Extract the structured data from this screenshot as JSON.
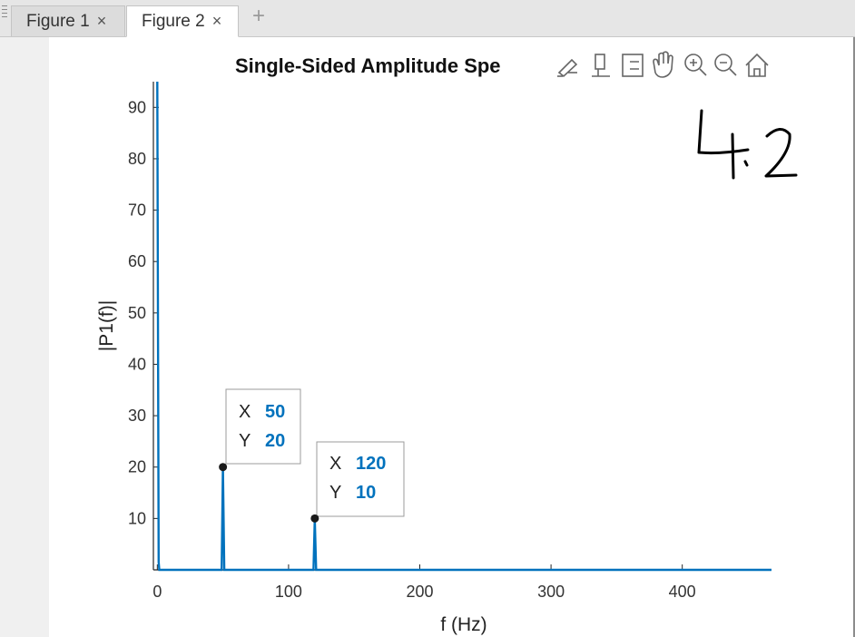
{
  "tabs": [
    {
      "label": "Figure 1",
      "close": "×"
    },
    {
      "label": "Figure 2",
      "close": "×"
    }
  ],
  "add_tab_label": "+",
  "toolbar_icons": [
    "brush-icon",
    "datatip-icon",
    "legend-icon",
    "pan-icon",
    "zoom-in-icon",
    "zoom-out-icon",
    "home-icon"
  ],
  "colors": {
    "series": "#0072bd",
    "datatip_value": "#0072bd"
  },
  "annotation_handwritten": "4.2",
  "chart_data": {
    "type": "line",
    "title": "Single-Sided Amplitude Spe",
    "xlabel": "f (Hz)",
    "ylabel": "|P1(f)|",
    "xlim": [
      -3,
      468
    ],
    "ylim": [
      0,
      95
    ],
    "xticks": [
      0,
      100,
      200,
      300,
      400
    ],
    "yticks": [
      10,
      20,
      30,
      40,
      50,
      60,
      70,
      80,
      90
    ],
    "series": [
      {
        "x": [
          0,
          0,
          1,
          1.5,
          49,
          50,
          51,
          119,
          120,
          121,
          468
        ],
        "values": [
          95,
          95,
          1.5,
          0,
          0,
          20,
          0,
          0,
          10,
          0,
          0
        ]
      }
    ],
    "datatips": [
      {
        "x_label": "X",
        "y_label": "Y",
        "x": 50,
        "y": 20
      },
      {
        "x_label": "X",
        "y_label": "Y",
        "x": 120,
        "y": 10
      }
    ]
  }
}
